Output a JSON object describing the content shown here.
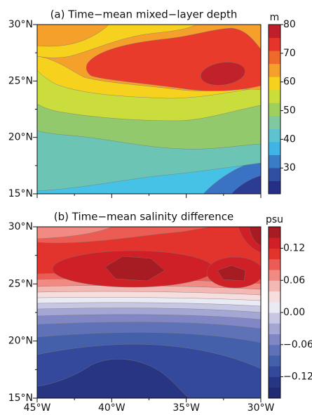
{
  "chart_data": [
    {
      "type": "contour",
      "title": "(a) Time−mean mixed−layer depth",
      "ylim": [
        15,
        30
      ],
      "yticks": [
        {
          "value": 15,
          "label": "15°N"
        },
        {
          "value": 20,
          "label": "20°N"
        },
        {
          "value": 25,
          "label": "25°N"
        },
        {
          "value": 30,
          "label": "30°N"
        }
      ],
      "colorbar": {
        "label": "m",
        "lim": [
          21,
          80
        ],
        "ticks": [
          30,
          40,
          50,
          60,
          70,
          80
        ],
        "colors": [
          "#262f86",
          "#2f4fa3",
          "#3a7cc6",
          "#40b4e4",
          "#5ec3cf",
          "#7fc8a0",
          "#9fcf5c",
          "#cadd3a",
          "#f6d21f",
          "#f4a02a",
          "#ed6a2a",
          "#e5352b",
          "#bf1f2b"
        ]
      }
    },
    {
      "type": "contour",
      "title": "(b) Time−mean salinity difference",
      "xlim": [
        -45,
        -30
      ],
      "xticks": [
        {
          "value": -45,
          "label": "45°W"
        },
        {
          "value": -40,
          "label": "40°W"
        },
        {
          "value": -35,
          "label": "35°W"
        },
        {
          "value": -30,
          "label": "30°W"
        }
      ],
      "ylim": [
        15,
        30
      ],
      "yticks": [
        {
          "value": 15,
          "label": "15°N"
        },
        {
          "value": 20,
          "label": "20°N"
        },
        {
          "value": 25,
          "label": "25°N"
        },
        {
          "value": 30,
          "label": "30°N"
        }
      ],
      "colorbar": {
        "label": "psu",
        "lim": [
          -0.16,
          0.16
        ],
        "ticks": [
          {
            "value": -0.12,
            "label": "−0.12"
          },
          {
            "value": -0.06,
            "label": "−0.06"
          },
          {
            "value": 0,
            "label": "0.00"
          },
          0.06,
          0.12
        ],
        "colors": [
          "#1f2a73",
          "#283583",
          "#34499c",
          "#4560ab",
          "#6072b7",
          "#8087c4",
          "#a4a6d3",
          "#c7c7e3",
          "#eaeaf5",
          "#f7dede",
          "#f3b8b4",
          "#f08a82",
          "#eb5d54",
          "#e2332d",
          "#cf2027",
          "#a61c22"
        ]
      }
    }
  ]
}
